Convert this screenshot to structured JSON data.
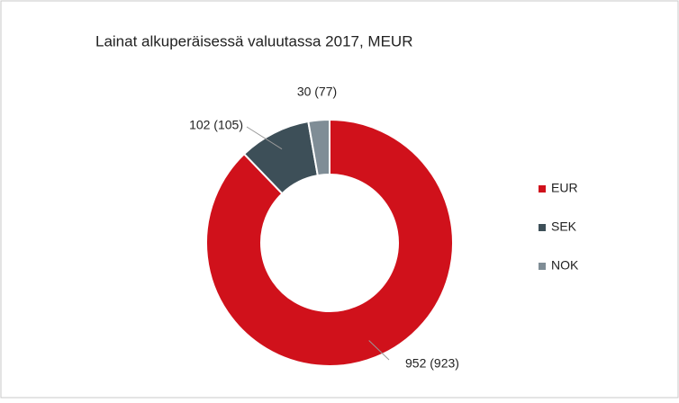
{
  "chart_data": {
    "type": "donut",
    "title": "Lainat alkuperäisessä valuutassa 2017, MEUR",
    "categories": [
      "EUR",
      "SEK",
      "NOK"
    ],
    "values": [
      952,
      102,
      30
    ],
    "value_labels": [
      "952 (923)",
      "102 (105)",
      "30 (77)"
    ],
    "colors": [
      "#d0111b",
      "#3d4f58",
      "#7f8d96"
    ],
    "legend": "right"
  }
}
